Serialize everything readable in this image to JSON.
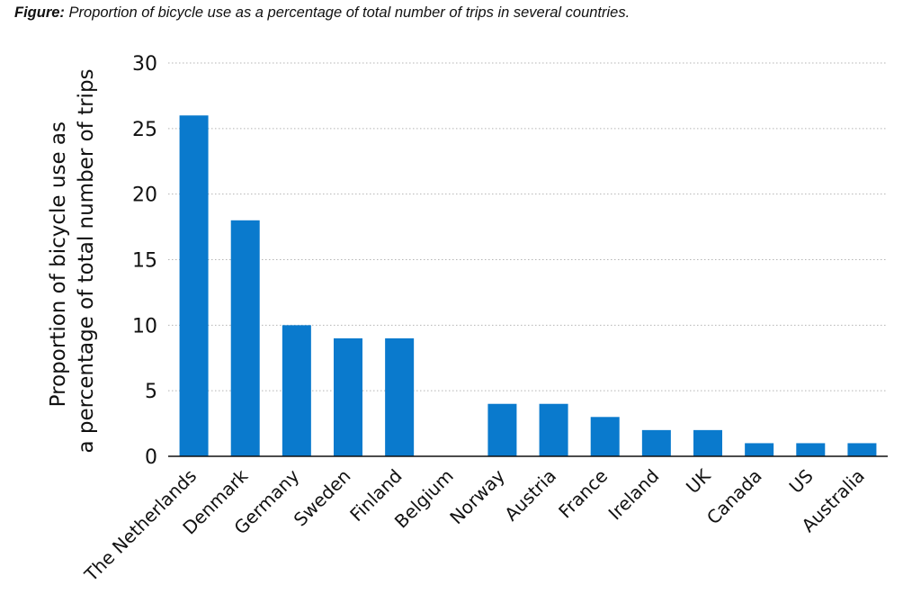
{
  "figure_caption": {
    "label": "Figure:",
    "text": "Proportion of bicycle use as a percentage of total number of trips in several countries."
  },
  "chart_data": {
    "type": "bar",
    "categories": [
      "The Netherlands",
      "Denmark",
      "Germany",
      "Sweden",
      "Finland",
      "Belgium",
      "Norway",
      "Austria",
      "France",
      "Ireland",
      "UK",
      "Canada",
      "US",
      "Australia"
    ],
    "values": [
      26,
      18,
      10,
      9,
      9,
      0,
      4,
      4,
      3,
      2,
      2,
      1,
      1,
      1
    ],
    "title": "",
    "xlabel": "",
    "ylabel_lines": [
      "Proportion of bicycle use as",
      "a percentage of total number of trips"
    ],
    "ylim": [
      0,
      30
    ],
    "yticks": [
      0,
      5,
      10,
      15,
      20,
      25,
      30
    ],
    "grid": true,
    "legend": "none",
    "bar_color": "#0a7acd",
    "grid_color": "#b5b5b5",
    "axis_color": "#111111"
  }
}
